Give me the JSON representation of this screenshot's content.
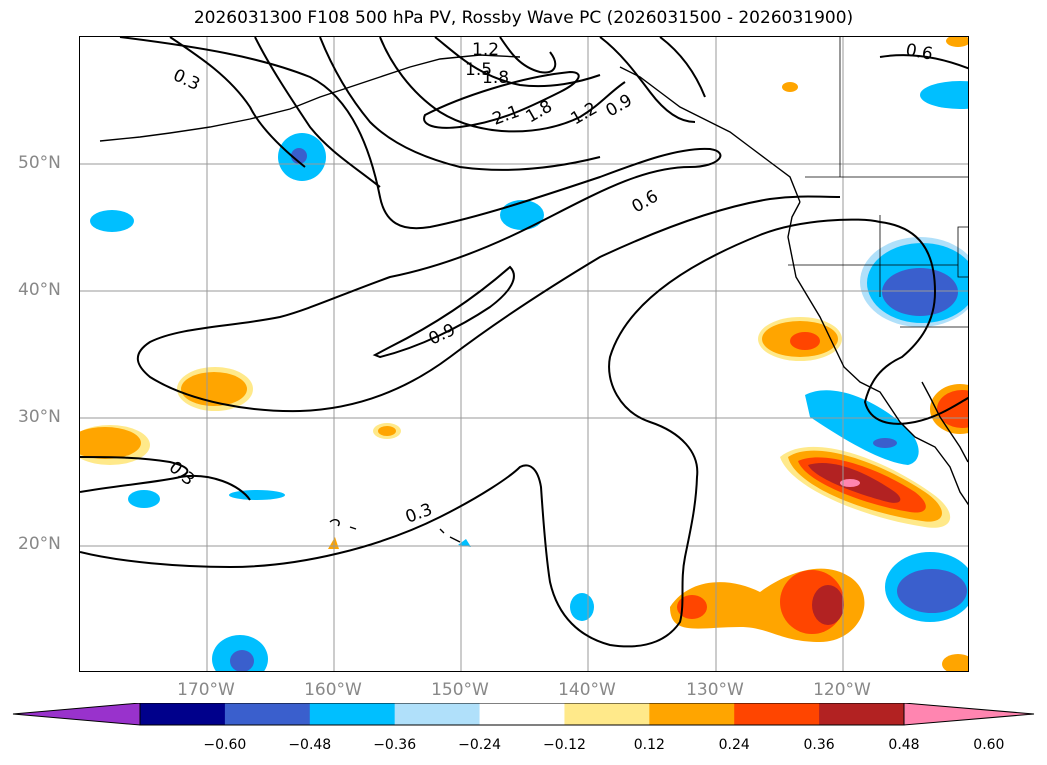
{
  "title": "2026031300 F108 500 hPa PV, Rossby Wave PC (2026031500 - 2026031900)",
  "lat_labels": [
    "50°N",
    "40°N",
    "30°N",
    "20°N"
  ],
  "lon_labels": [
    "170°W",
    "160°W",
    "150°W",
    "140°W",
    "130°W",
    "120°W"
  ],
  "colorbar": {
    "ticks": [
      "−0.60",
      "−0.48",
      "−0.36",
      "−0.24",
      "−0.12",
      "0.12",
      "0.24",
      "0.36",
      "0.48",
      "0.60"
    ],
    "colors": [
      "#9932cc",
      "#00008b",
      "#3a5fcd",
      "#00bfff",
      "#b0e0fa",
      "#ffffff",
      "#ffe98a",
      "#ffa500",
      "#ff4500",
      "#b22222",
      "#ff85b0"
    ]
  },
  "contour_labels": [
    "0.3",
    "1.2",
    "1.5",
    "1.8",
    "2.1",
    "1.8",
    "1.2",
    "0.9",
    "0.6",
    "0.6",
    "0.9",
    "0.3",
    "0.3"
  ],
  "map": {
    "lon_range": [
      -180,
      -110
    ],
    "lat_range": [
      10,
      60
    ]
  }
}
